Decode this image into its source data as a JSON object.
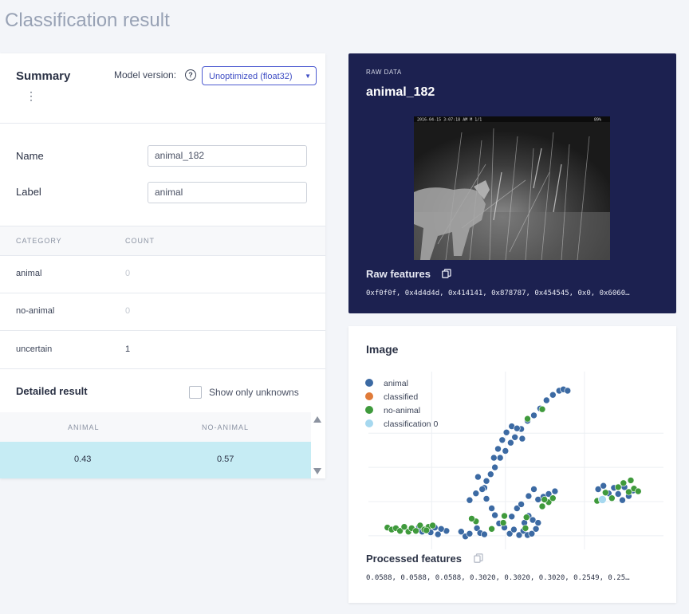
{
  "page": {
    "title": "Classification result"
  },
  "summary": {
    "title": "Summary",
    "model_label": "Model version:",
    "model_value": "Unoptimized (float32)",
    "name_label": "Name",
    "name_value": "animal_182",
    "label_label": "Label",
    "label_value": "animal"
  },
  "categories": {
    "headers": {
      "category": "CATEGORY",
      "count": "COUNT"
    },
    "rows": [
      {
        "name": "animal",
        "count": "0"
      },
      {
        "name": "no-animal",
        "count": "0"
      },
      {
        "name": "uncertain",
        "count": "1"
      }
    ]
  },
  "detailed": {
    "title": "Detailed result",
    "checkbox_label": "Show only unknowns",
    "checkbox_checked": false,
    "headers": [
      "ANIMAL",
      "NO-ANIMAL"
    ],
    "row": [
      "0.43",
      "0.57"
    ]
  },
  "raw": {
    "kicker": "RAW DATA",
    "title": "animal_182",
    "features_label": "Raw features",
    "features_value": "0xf0f0f, 0x4d4d4d, 0x414141, 0x878787, 0x454545, 0x0, 0x6060…",
    "image_overlay_text": "2016-04-15 3:07:18 AM   M 1/1",
    "image_overlay_suffix": "89%"
  },
  "image_panel": {
    "title": "Image",
    "processed_label": "Processed features",
    "processed_value": "0.0588, 0.0588, 0.0588, 0.3020, 0.3020, 0.3020, 0.2549, 0.25…"
  },
  "chart_data": {
    "type": "scatter",
    "legend_position": "top-left",
    "grid": true,
    "series": [
      {
        "name": "animal",
        "color": "#3c6aa3",
        "points": [
          [
            -1.9,
            0.6
          ],
          [
            -1.4,
            1.5
          ],
          [
            -1.2,
            2.0
          ],
          [
            -1.0,
            2.5
          ],
          [
            -0.75,
            3.2
          ],
          [
            -0.5,
            3.7
          ],
          [
            -0.25,
            4.3
          ],
          [
            -0.05,
            4.7
          ],
          [
            0.25,
            5.3
          ],
          [
            0.55,
            5.9
          ],
          [
            0.85,
            6.3
          ],
          [
            1.15,
            6.8
          ],
          [
            1.45,
            7.4
          ],
          [
            1.75,
            7.8
          ],
          [
            2.05,
            8.1
          ],
          [
            2.25,
            8.2
          ],
          [
            2.45,
            8.1
          ],
          [
            -1.5,
            1.0
          ],
          [
            -1.8,
            1.8
          ],
          [
            -1.05,
            3.2
          ],
          [
            -0.85,
            3.85
          ],
          [
            -0.65,
            4.5
          ],
          [
            -0.45,
            5.05
          ],
          [
            -0.2,
            5.5
          ],
          [
            0.05,
            5.35
          ],
          [
            0.3,
            4.6
          ],
          [
            -2.2,
            0.1
          ],
          [
            -1.6,
            0.9
          ],
          [
            -1.4,
            0.2
          ],
          [
            -1.15,
            -0.5
          ],
          [
            -1.0,
            -1.0
          ],
          [
            -0.8,
            -1.6
          ],
          [
            -0.55,
            -1.9
          ],
          [
            -0.3,
            -2.35
          ],
          [
            -0.1,
            -2.05
          ],
          [
            0.15,
            -2.45
          ],
          [
            0.35,
            -2.15
          ],
          [
            0.55,
            -2.45
          ],
          [
            0.75,
            -2.35
          ],
          [
            0.95,
            -2.0
          ],
          [
            -0.2,
            -1.1
          ],
          [
            0.05,
            -0.5
          ],
          [
            0.25,
            -0.2
          ],
          [
            -3.3,
            -2.15
          ],
          [
            -3.55,
            -2.0
          ],
          [
            -3.7,
            -2.4
          ],
          [
            -3.85,
            -1.9
          ],
          [
            -4.05,
            -2.25
          ],
          [
            -4.25,
            -2.0
          ],
          [
            -4.45,
            -2.2
          ],
          [
            -4.6,
            -1.85
          ],
          [
            -2.6,
            -2.2
          ],
          [
            -2.4,
            -2.55
          ],
          [
            -2.2,
            -2.35
          ],
          [
            -1.85,
            -1.95
          ],
          [
            -1.7,
            -2.3
          ],
          [
            -1.5,
            -2.4
          ],
          [
            0.6,
            0.4
          ],
          [
            0.85,
            0.9
          ],
          [
            1.05,
            0.15
          ],
          [
            1.3,
            0.35
          ],
          [
            1.55,
            0.55
          ],
          [
            1.85,
            0.75
          ],
          [
            3.9,
            0.9
          ],
          [
            4.15,
            1.15
          ],
          [
            4.4,
            0.6
          ],
          [
            4.65,
            1.0
          ],
          [
            4.85,
            0.55
          ],
          [
            5.15,
            1.05
          ],
          [
            5.35,
            0.4
          ],
          [
            5.55,
            0.8
          ],
          [
            5.05,
            0.1
          ],
          [
            0.4,
            -1.55
          ],
          [
            0.6,
            -1.05
          ],
          [
            0.8,
            -1.35
          ],
          [
            1.05,
            -1.55
          ]
        ]
      },
      {
        "name": "classified",
        "color": "#e07b39",
        "points": []
      },
      {
        "name": "no-animal",
        "color": "#3f9a3c",
        "points": [
          [
            -6.1,
            -1.9
          ],
          [
            -5.9,
            -2.05
          ],
          [
            -5.7,
            -1.95
          ],
          [
            -5.5,
            -2.15
          ],
          [
            -5.3,
            -1.85
          ],
          [
            -5.1,
            -2.2
          ],
          [
            -4.95,
            -1.95
          ],
          [
            -4.75,
            -2.15
          ],
          [
            -4.55,
            -1.75
          ],
          [
            -4.35,
            -2.05
          ],
          [
            -4.15,
            -1.85
          ],
          [
            -3.95,
            -1.75
          ],
          [
            1.25,
            -0.35
          ],
          [
            1.55,
            -0.05
          ],
          [
            1.75,
            0.25
          ],
          [
            1.35,
            0.15
          ],
          [
            4.25,
            0.65
          ],
          [
            4.55,
            0.25
          ],
          [
            4.85,
            1.05
          ],
          [
            5.1,
            1.35
          ],
          [
            5.35,
            0.7
          ],
          [
            5.6,
            0.95
          ],
          [
            5.8,
            0.75
          ],
          [
            5.45,
            1.55
          ],
          [
            3.85,
            0.05
          ],
          [
            0.55,
            6.05
          ],
          [
            1.25,
            6.75
          ],
          [
            -1.9,
            -1.45
          ],
          [
            -0.55,
            -1.05
          ],
          [
            0.45,
            -1.95
          ],
          [
            -1.15,
            -2.0
          ],
          [
            -2.1,
            -1.25
          ],
          [
            0.5,
            -1.15
          ],
          [
            -0.6,
            -1.55
          ],
          [
            -4.25,
            -2.1
          ]
        ]
      },
      {
        "name": "classification 0",
        "color": "#a6d8ef",
        "points": [
          [
            4.1,
            0.15
          ]
        ]
      }
    ]
  }
}
